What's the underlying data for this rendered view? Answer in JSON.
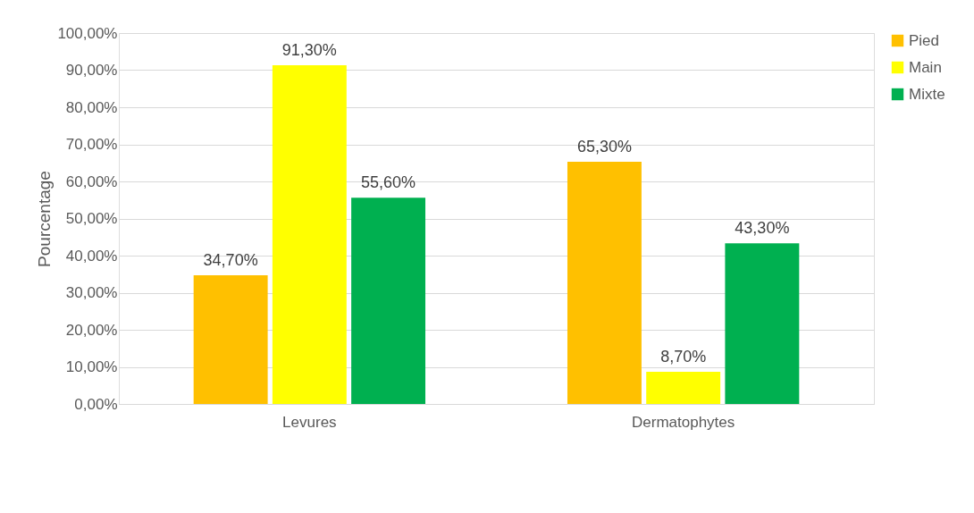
{
  "chart_data": {
    "type": "bar",
    "ylabel": "Pourcentage",
    "categories": [
      "Levures",
      "Dermatophytes"
    ],
    "series": [
      {
        "name": "Pied",
        "color": "#ffc000",
        "values": [
          34.7,
          65.3
        ],
        "value_labels": [
          "34,70%",
          "65,30%"
        ]
      },
      {
        "name": "Main",
        "color": "#ffff00",
        "values": [
          91.3,
          8.7
        ],
        "value_labels": [
          "91,30%",
          "8,70%"
        ]
      },
      {
        "name": "Mixte",
        "color": "#00b050",
        "values": [
          55.6,
          43.3
        ],
        "value_labels": [
          "55,60%",
          "43,30%"
        ]
      }
    ],
    "ylim": [
      0,
      100
    ],
    "yticks": [
      {
        "value": 0,
        "label": "0,00%"
      },
      {
        "value": 10,
        "label": "10,00%"
      },
      {
        "value": 20,
        "label": "20,00%"
      },
      {
        "value": 30,
        "label": "30,00%"
      },
      {
        "value": 40,
        "label": "40,00%"
      },
      {
        "value": 50,
        "label": "50,00%"
      },
      {
        "value": 60,
        "label": "60,00%"
      },
      {
        "value": 70,
        "label": "70,00%"
      },
      {
        "value": 80,
        "label": "80,00%"
      },
      {
        "value": 90,
        "label": "90,00%"
      },
      {
        "value": 100,
        "label": "100,00%"
      }
    ],
    "grid": "y",
    "legend": "right"
  }
}
